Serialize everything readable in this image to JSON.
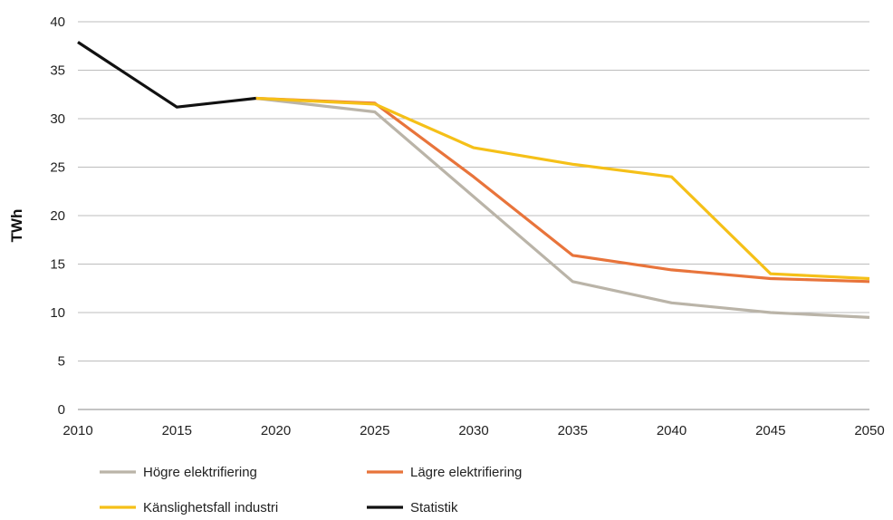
{
  "chart_data": {
    "type": "line",
    "title": "",
    "xlabel": "",
    "ylabel": "TWh",
    "x_ticks": [
      "2010",
      "2015",
      "2020",
      "2025",
      "2030",
      "2035",
      "2040",
      "2045",
      "2050"
    ],
    "y_ticks": [
      "0",
      "5",
      "10",
      "15",
      "20",
      "25",
      "30",
      "35",
      "40"
    ],
    "xlim": [
      2010,
      2050
    ],
    "ylim": [
      0,
      40
    ],
    "grid": "horizontal",
    "legend_position": "bottom",
    "series": [
      {
        "name": "Högre elektrifiering",
        "color": "#bab4a8",
        "x": [
          2019,
          2025,
          2035,
          2040,
          2045,
          2050
        ],
        "y": [
          32.1,
          30.7,
          13.2,
          11.0,
          10.0,
          9.5
        ]
      },
      {
        "name": "Lägre elektrifiering",
        "color": "#e8743b",
        "x": [
          2019,
          2025,
          2030,
          2035,
          2040,
          2045,
          2050
        ],
        "y": [
          32.1,
          31.6,
          24.0,
          15.9,
          14.4,
          13.5,
          13.2
        ]
      },
      {
        "name": "Känslighetsfall industri",
        "color": "#f5c018",
        "x": [
          2019,
          2025,
          2030,
          2035,
          2040,
          2045,
          2050
        ],
        "y": [
          32.1,
          31.5,
          27.0,
          25.3,
          24.0,
          14.0,
          13.5
        ]
      },
      {
        "name": "Statistik",
        "color": "#111111",
        "x": [
          2010,
          2015,
          2019
        ],
        "y": [
          37.9,
          31.2,
          32.1
        ]
      }
    ]
  }
}
